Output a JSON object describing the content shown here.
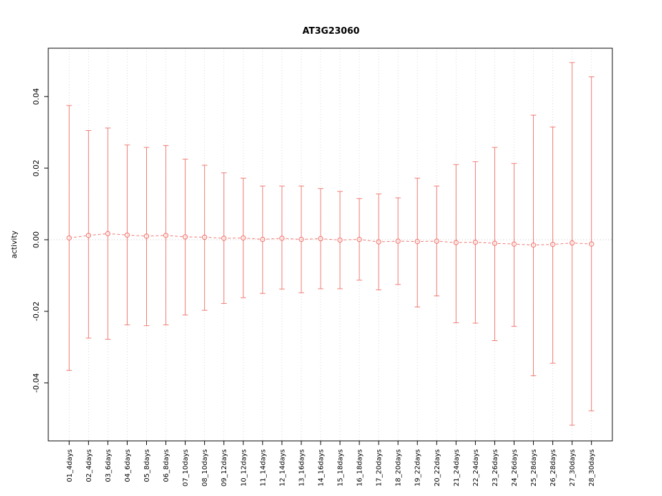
{
  "chart_data": {
    "type": "scatter",
    "subtype": "errorbar",
    "title": "AT3G23060",
    "xlabel": "",
    "ylabel": "activity",
    "ylim": [
      -0.0562,
      0.0535
    ],
    "yticks": [
      -0.04,
      -0.02,
      0.0,
      0.02,
      0.04
    ],
    "ytick_labels": [
      "-0.04",
      "-0.02",
      "0.00",
      "0.02",
      "0.04"
    ],
    "grid": "dotted-vertical-per-category-and-zero-line",
    "legend": "none",
    "series_color": "#f07a72",
    "grid_color": "#c8c8c8",
    "zero_line_color": "#b0b0b0",
    "box_color": "#000000",
    "categories": [
      "01_4days",
      "02_4days",
      "03_6days",
      "04_6days",
      "05_8days",
      "06_8days",
      "07_10days",
      "08_10days",
      "09_12days",
      "10_12days",
      "11_14days",
      "12_14days",
      "13_16days",
      "14_16days",
      "15_18days",
      "16_18days",
      "17_20days",
      "18_20days",
      "19_22days",
      "20_22days",
      "21_24days",
      "22_24days",
      "23_26days",
      "24_26days",
      "25_28days",
      "26_28days",
      "27_30days",
      "28_30days"
    ],
    "means": [
      0.0005,
      0.0012,
      0.0017,
      0.0013,
      0.001,
      0.0012,
      0.0008,
      0.0007,
      0.0004,
      0.0005,
      0.0001,
      0.0004,
      0.0001,
      0.0003,
      -0.0001,
      0.0001,
      -0.0006,
      -0.0004,
      -0.0005,
      -0.0004,
      -0.0008,
      -0.0007,
      -0.001,
      -0.0012,
      -0.0015,
      -0.0013,
      -0.0009,
      -0.0012
    ],
    "upper": [
      0.0375,
      0.0305,
      0.0312,
      0.0265,
      0.0258,
      0.0263,
      0.0225,
      0.0208,
      0.0187,
      0.0172,
      0.015,
      0.015,
      0.015,
      0.0143,
      0.0135,
      0.0115,
      0.0128,
      0.0117,
      0.0172,
      0.015,
      0.021,
      0.0218,
      0.0258,
      0.0213,
      0.0348,
      0.0315,
      0.0495,
      0.0455
    ],
    "lower": [
      -0.0365,
      -0.0275,
      -0.0278,
      -0.0238,
      -0.024,
      -0.0238,
      -0.021,
      -0.0197,
      -0.0178,
      -0.0162,
      -0.015,
      -0.0138,
      -0.0148,
      -0.0137,
      -0.0137,
      -0.0113,
      -0.014,
      -0.0125,
      -0.0188,
      -0.0157,
      -0.0232,
      -0.0233,
      -0.0282,
      -0.0242,
      -0.038,
      -0.0345,
      -0.0518,
      -0.0478
    ]
  }
}
